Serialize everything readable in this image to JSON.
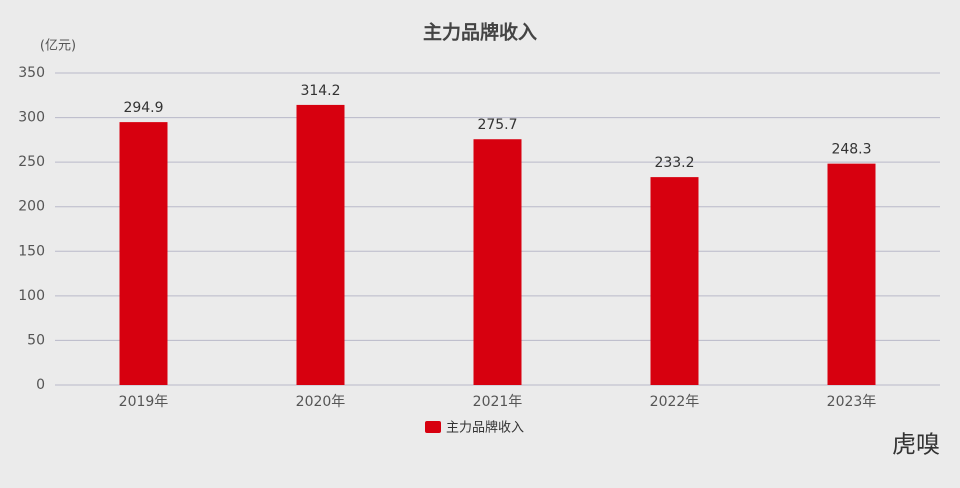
{
  "chart_data": {
    "type": "bar",
    "title": "主力品牌收入",
    "y_unit": "(亿元)",
    "categories": [
      "2019年",
      "2020年",
      "2021年",
      "2022年",
      "2023年"
    ],
    "series": [
      {
        "name": "主力品牌收入",
        "color": "#d7000f",
        "values": [
          294.9,
          314.2,
          275.7,
          233.2,
          248.3
        ]
      }
    ],
    "ylim": [
      0,
      350
    ],
    "yticks": [
      0,
      50,
      100,
      150,
      200,
      250,
      300,
      350
    ],
    "grid": true,
    "legend": "bottom",
    "watermark": "虎嗅"
  }
}
